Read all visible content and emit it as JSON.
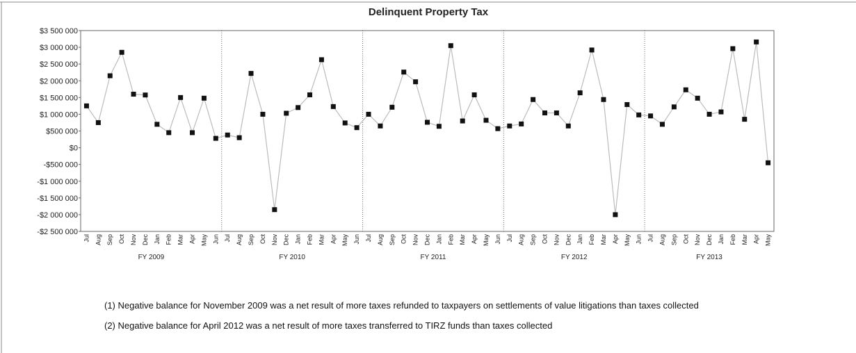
{
  "chart_data": {
    "type": "line",
    "title": "Delinquent Property Tax",
    "categories": [
      "Jul",
      "Aug",
      "Sep",
      "Oct",
      "Nov",
      "Dec",
      "Jan",
      "Feb",
      "Mar",
      "Apr",
      "May",
      "Jun",
      "Jul",
      "Aug",
      "Sep",
      "Oct",
      "Nov",
      "Dec",
      "Jan",
      "Feb",
      "Mar",
      "Apr",
      "May",
      "Jun",
      "Jul",
      "Aug",
      "Sep",
      "Oct",
      "Nov",
      "Dec",
      "Jan",
      "Feb",
      "Mar",
      "Apr",
      "May",
      "Jun",
      "Jul",
      "Aug",
      "Sep",
      "Oct",
      "Nov",
      "Dec",
      "Jan",
      "Feb",
      "Mar",
      "Apr",
      "May",
      "Jun",
      "Jul",
      "Aug",
      "Sep",
      "Oct",
      "Nov",
      "Dec",
      "Jan",
      "Feb",
      "Mar",
      "Apr",
      "May"
    ],
    "groups": [
      "FY 2009",
      "FY 2010",
      "FY 2011",
      "FY 2012",
      "FY 2013"
    ],
    "series": [
      {
        "color": "#bbbbbb",
        "values": [
          1250000,
          750000,
          2150000,
          2850000,
          1600000,
          1575000,
          700000,
          450000,
          1500000,
          450000,
          1480000,
          280000,
          380000,
          300000,
          2220000,
          1000000,
          -1850000,
          1030000,
          1200000,
          1580000,
          2630000,
          1230000,
          740000,
          600000,
          1000000,
          650000,
          1210000,
          2260000,
          1970000,
          760000,
          640000,
          3050000,
          800000,
          1580000,
          820000,
          570000,
          650000,
          710000,
          1440000,
          1040000,
          1040000,
          650000,
          1640000,
          2920000,
          1440000,
          -2000000,
          1290000,
          980000,
          950000,
          700000,
          1220000,
          1730000,
          1480000,
          1000000,
          1070000,
          2960000,
          850000,
          3160000,
          -450000
        ]
      }
    ],
    "ylim": [
      -2500000,
      3500000
    ],
    "yticks": [
      {
        "value": -2500000,
        "label": "-$2 500 000"
      },
      {
        "value": -2000000,
        "label": "-$2 000 000"
      },
      {
        "value": -1500000,
        "label": "-$1 500 000"
      },
      {
        "value": -1000000,
        "label": "-$1 000 000"
      },
      {
        "value": -500000,
        "label": "-$500 000"
      },
      {
        "value": 0,
        "label": "$0"
      },
      {
        "value": 500000,
        "label": "$500 000"
      },
      {
        "value": 1000000,
        "label": "$1 000 000"
      },
      {
        "value": 1500000,
        "label": "$1 500 000"
      },
      {
        "value": 2000000,
        "label": "$2 000 000"
      },
      {
        "value": 2500000,
        "label": "$2 500 000"
      },
      {
        "value": 3000000,
        "label": "$3 000 000"
      },
      {
        "value": 3500000,
        "label": "$3 500 000"
      }
    ]
  },
  "notes": [
    "(1) Negative  balance for November  2009 was a net result of more taxes refunded to taxpayers  on settlements of value litigations  than taxes collected",
    "(2) Negative  balance for April 2012 was a net result of more taxes transferred to TIRZ funds than taxes collected"
  ]
}
